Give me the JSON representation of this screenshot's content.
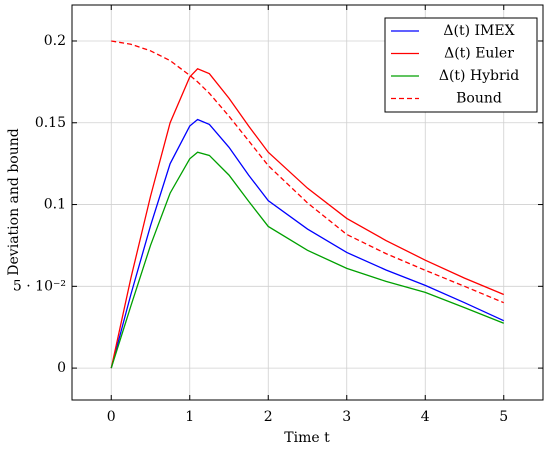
{
  "chart_data": {
    "type": "line",
    "xlabel": "Time t",
    "ylabel": "Deviation and bound",
    "x": [
      0,
      0.25,
      0.5,
      0.75,
      1,
      1.1,
      1.25,
      1.5,
      1.75,
      2,
      2.5,
      3,
      3.5,
      4,
      4.5,
      5
    ],
    "series": [
      {
        "name": "Δ(t) IMEX",
        "color": "#0000ff",
        "style": "solid",
        "values": [
          0,
          0.045,
          0.087,
          0.125,
          0.148,
          0.152,
          0.149,
          0.135,
          0.118,
          0.1024,
          0.085,
          0.0707,
          0.06,
          0.0506,
          0.04,
          0.029
        ]
      },
      {
        "name": "Δ(t) Euler",
        "color": "#ff0000",
        "style": "solid",
        "values": [
          0,
          0.055,
          0.105,
          0.15,
          0.178,
          0.183,
          0.18,
          0.165,
          0.148,
          0.132,
          0.11,
          0.0915,
          0.078,
          0.066,
          0.055,
          0.045
        ]
      },
      {
        "name": "Δ(t) Hybrid",
        "color": "#00a000",
        "style": "solid",
        "values": [
          0,
          0.038,
          0.075,
          0.107,
          0.128,
          0.132,
          0.13,
          0.118,
          0.102,
          0.0866,
          0.072,
          0.061,
          0.053,
          0.0463,
          0.037,
          0.0274
        ]
      },
      {
        "name": "Bound",
        "color": "#ff0000",
        "style": "dashed",
        "values": [
          0.2,
          0.198,
          0.194,
          0.188,
          0.179,
          0.175,
          0.168,
          0.154,
          0.139,
          0.1238,
          0.101,
          0.0817,
          0.07,
          0.0598,
          0.05,
          0.04
        ]
      }
    ],
    "xlim": [
      -0.5,
      5.5
    ],
    "xticks": [
      0,
      1,
      2,
      3,
      4,
      5
    ],
    "ylim": [
      -0.0195,
      0.222
    ],
    "yticks": [
      0,
      {
        "value": 0.05,
        "label": "5 · 10⁻²"
      },
      0.1,
      0.15,
      0.2
    ],
    "grid": true,
    "legend": "north east"
  }
}
